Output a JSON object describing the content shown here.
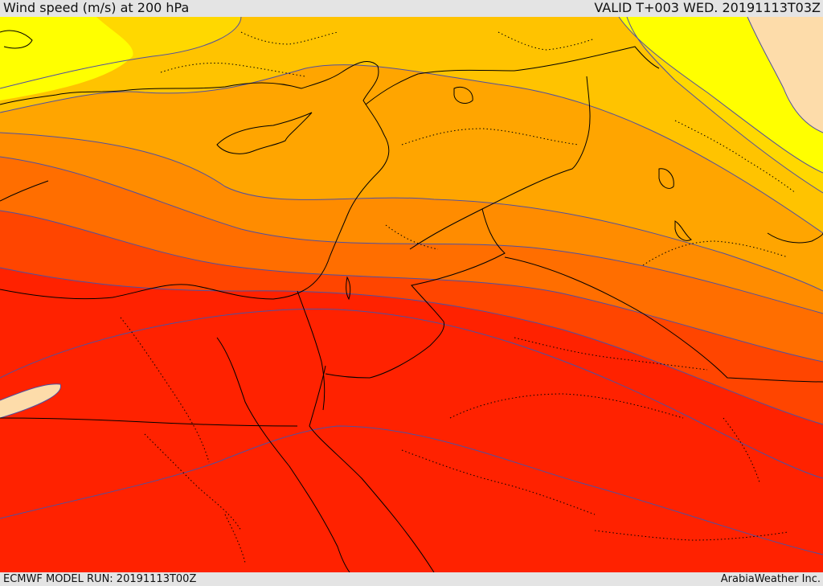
{
  "header": {
    "title": "Wind speed (m/s) at 200 hPa",
    "valid": "VALID T+003 WED. 20191113T03Z"
  },
  "footer": {
    "model_run": "ECMWF MODEL RUN: 20191113T00Z",
    "credit": "ArabiaWeather Inc."
  },
  "colors": {
    "speed_bands": [
      "#fddcaa",
      "#ffff00",
      "#ffd800",
      "#ffc300",
      "#ffa500",
      "#ff8c00",
      "#ff6e00",
      "#ff4500",
      "#ff2200",
      "#ff0000"
    ],
    "contour": "#5050a0",
    "border": "#000000"
  }
}
